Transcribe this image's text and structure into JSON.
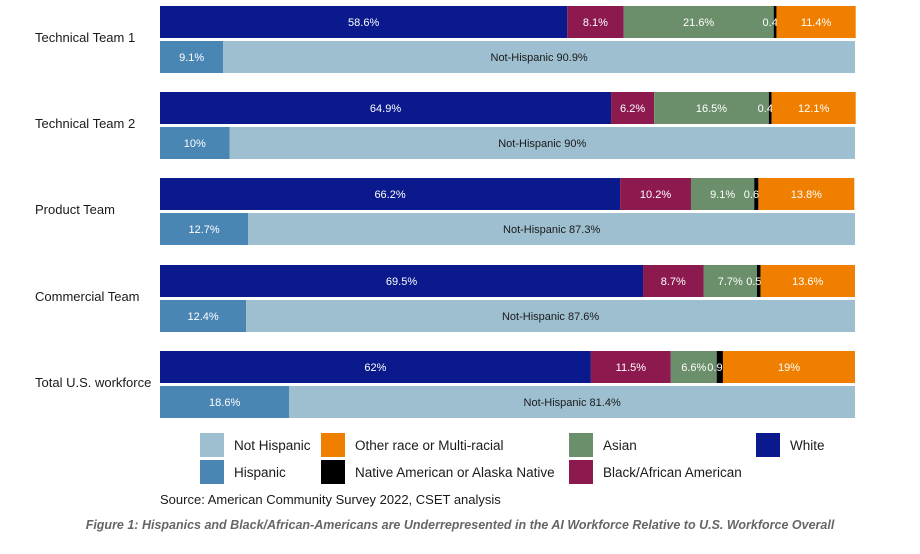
{
  "chart_data": {
    "type": "bar",
    "orientation": "horizontal-stacked-100",
    "x_range": [
      0,
      100
    ],
    "grid": false,
    "legend_position": "bottom",
    "categories": [
      "Technical Team 1",
      "Technical Team 2",
      "Product Team",
      "Commercial Team",
      "Total U.S. workforce"
    ],
    "race_bars": {
      "series": [
        {
          "name": "White",
          "color": "#0a1a8c",
          "label_color": "#ffffff",
          "values": [
            58.6,
            64.9,
            66.2,
            69.5,
            62
          ],
          "labels": [
            "58.6%",
            "64.9%",
            "66.2%",
            "69.5%",
            "62%"
          ]
        },
        {
          "name": "Black/African American",
          "color": "#8c1a4e",
          "label_color": "#ffffff",
          "values": [
            8.1,
            6.2,
            10.2,
            8.7,
            11.5
          ],
          "labels": [
            "8.1%",
            "6.2%",
            "10.2%",
            "8.7%",
            "11.5%"
          ]
        },
        {
          "name": "Asian",
          "color": "#6b8f6b",
          "label_color": "#ffffff",
          "values": [
            21.6,
            16.5,
            9.1,
            7.7,
            6.6
          ],
          "labels": [
            "21.6%",
            "16.5%",
            "9.1%",
            "7.7%",
            "6.6%"
          ]
        },
        {
          "name": "Native American or Alaska Native",
          "color": "#000000",
          "label_color": "#ffffff",
          "values": [
            0.4,
            0.4,
            0.6,
            0.5,
            0.9
          ],
          "labels": [
            "0.4%",
            "0.4%",
            "0.6%",
            "0.5%",
            "0.9%"
          ]
        },
        {
          "name": "Other race or Multi-racial",
          "color": "#f07f00",
          "label_color": "#ffffff",
          "values": [
            11.4,
            12.1,
            13.8,
            13.6,
            19
          ],
          "labels": [
            "11.4%",
            "12.1%",
            "13.8%",
            "13.6%",
            "19%"
          ]
        }
      ]
    },
    "ethnicity_bars": {
      "series": [
        {
          "name": "Hispanic",
          "color": "#4a86b4",
          "label_color": "#ffffff",
          "values": [
            9.1,
            10,
            12.7,
            12.4,
            18.6
          ],
          "labels": [
            "9.1%",
            "10%",
            "12.7%",
            "12.4%",
            "18.6%"
          ]
        },
        {
          "name": "Not Hispanic",
          "color": "#9dbfcf",
          "label_color": "#1a1a1a",
          "values": [
            90.9,
            90,
            87.3,
            87.6,
            81.4
          ],
          "labels": [
            "Not-Hispanic  90.9%",
            "Not-Hispanic  90%",
            "Not-Hispanic  87.3%",
            "Not-Hispanic  87.6%",
            "Not-Hispanic  81.4%"
          ]
        }
      ]
    },
    "legend": [
      {
        "name": "Not Hispanic",
        "color": "#9dbfcf"
      },
      {
        "name": "Other race or Multi-racial",
        "color": "#f07f00"
      },
      {
        "name": "Asian",
        "color": "#6b8f6b"
      },
      {
        "name": "White",
        "color": "#0a1a8c"
      },
      {
        "name": "Hispanic",
        "color": "#4a86b4"
      },
      {
        "name": "Native American or Alaska Native",
        "color": "#000000"
      },
      {
        "name": "Black/African American",
        "color": "#8c1a4e"
      }
    ]
  },
  "source": "Source: American Community Survey 2022, CSET analysis",
  "caption": "Figure 1: Hispanics and Black/African-Americans are Underrepresented in the AI Workforce Relative to U.S. Workforce Overall"
}
